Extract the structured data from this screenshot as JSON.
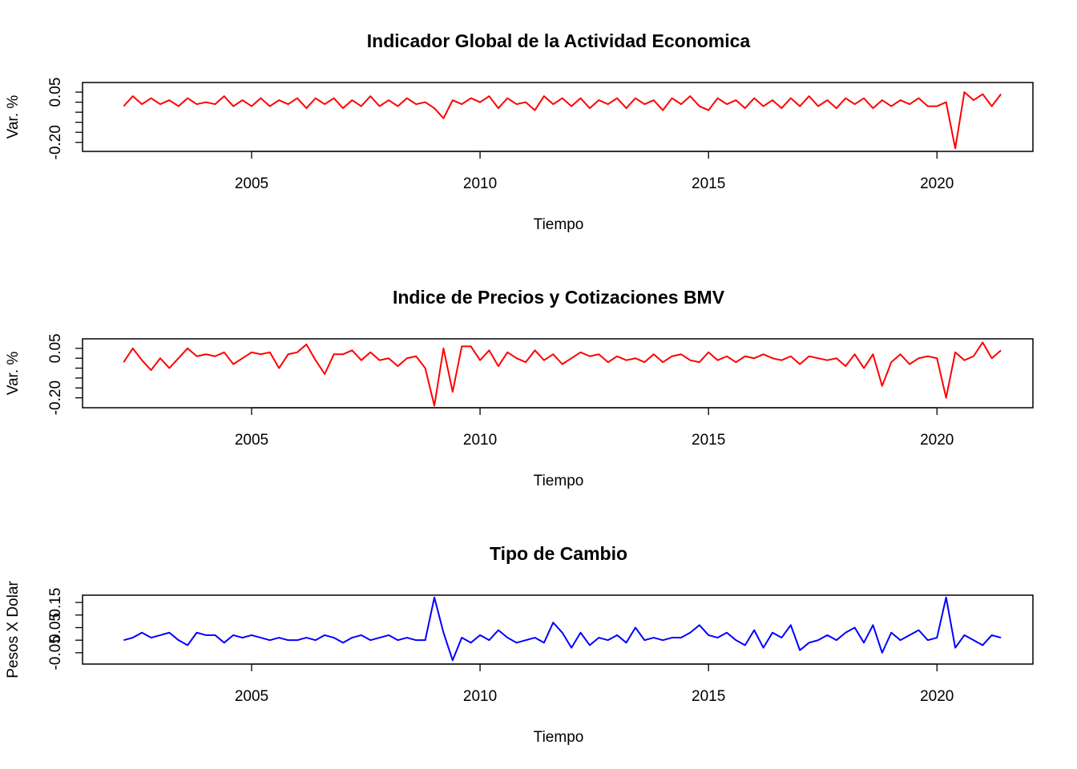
{
  "chart_data": [
    {
      "type": "line",
      "title": "Indicador Global de la Actividad Economica",
      "xlabel": "Tiempo",
      "ylabel": "Var. %",
      "x": [
        2002.2,
        2002.4,
        2002.6,
        2002.8,
        2003,
        2003.2,
        2003.4,
        2003.6,
        2003.8,
        2004,
        2004.2,
        2004.4,
        2004.6,
        2004.8,
        2005,
        2005.2,
        2005.4,
        2005.6,
        2005.8,
        2006,
        2006.2,
        2006.4,
        2006.6,
        2006.8,
        2007,
        2007.2,
        2007.4,
        2007.6,
        2007.8,
        2008,
        2008.2,
        2008.4,
        2008.6,
        2008.8,
        2009,
        2009.2,
        2009.4,
        2009.6,
        2009.8,
        2010,
        2010.2,
        2010.4,
        2010.6,
        2010.8,
        2011,
        2011.2,
        2011.4,
        2011.6,
        2011.8,
        2012,
        2012.2,
        2012.4,
        2012.6,
        2012.8,
        2013,
        2013.2,
        2013.4,
        2013.6,
        2013.8,
        2014,
        2014.2,
        2014.4,
        2014.6,
        2014.8,
        2015,
        2015.2,
        2015.4,
        2015.6,
        2015.8,
        2016,
        2016.2,
        2016.4,
        2016.6,
        2016.8,
        2017,
        2017.2,
        2017.4,
        2017.6,
        2017.8,
        2018,
        2018.2,
        2018.4,
        2018.6,
        2018.8,
        2019,
        2019.2,
        2019.4,
        2019.6,
        2019.8,
        2020,
        2020.2,
        2020.4,
        2020.6,
        2020.8,
        2021,
        2021.2,
        2021.4
      ],
      "series": [
        {
          "color": "#ff0000",
          "values": [
            -0.02,
            0.03,
            -0.01,
            0.02,
            -0.01,
            0.01,
            -0.02,
            0.02,
            -0.01,
            0.0,
            -0.01,
            0.03,
            -0.02,
            0.01,
            -0.02,
            0.02,
            -0.02,
            0.01,
            -0.01,
            0.02,
            -0.03,
            0.02,
            -0.01,
            0.02,
            -0.03,
            0.01,
            -0.02,
            0.03,
            -0.02,
            0.01,
            -0.02,
            0.02,
            -0.01,
            0.0,
            -0.03,
            -0.08,
            0.01,
            -0.01,
            0.02,
            0.0,
            0.03,
            -0.03,
            0.02,
            -0.01,
            0.0,
            -0.04,
            0.03,
            -0.01,
            0.02,
            -0.02,
            0.02,
            -0.03,
            0.01,
            -0.01,
            0.02,
            -0.03,
            0.02,
            -0.01,
            0.01,
            -0.04,
            0.02,
            -0.01,
            0.03,
            -0.02,
            -0.04,
            0.02,
            -0.01,
            0.01,
            -0.03,
            0.02,
            -0.02,
            0.01,
            -0.03,
            0.02,
            -0.02,
            0.03,
            -0.02,
            0.01,
            -0.03,
            0.02,
            -0.01,
            0.02,
            -0.03,
            0.01,
            -0.02,
            0.01,
            -0.01,
            0.02,
            -0.02,
            -0.02,
            0.0,
            -0.23,
            0.05,
            0.01,
            0.04,
            -0.02,
            0.04
          ]
        }
      ],
      "xlim": [
        2001.3,
        2022.1
      ],
      "ylim": [
        -0.245,
        0.098
      ],
      "xticks": [
        2005,
        2010,
        2015,
        2020
      ],
      "yticks": [
        {
          "value": -0.2,
          "label": "-0.20"
        },
        {
          "value": -0.15,
          "label": null
        },
        {
          "value": -0.1,
          "label": null
        },
        {
          "value": -0.05,
          "label": null
        },
        {
          "value": 0,
          "label": null
        },
        {
          "value": 0.05,
          "label": "0.05"
        }
      ]
    },
    {
      "type": "line",
      "title": "Indice de Precios y Cotizaciones BMV",
      "xlabel": "Tiempo",
      "ylabel": "Var. %",
      "x": [
        2002.2,
        2002.4,
        2002.6,
        2002.8,
        2003,
        2003.2,
        2003.4,
        2003.6,
        2003.8,
        2004,
        2004.2,
        2004.4,
        2004.6,
        2004.8,
        2005,
        2005.2,
        2005.4,
        2005.6,
        2005.8,
        2006,
        2006.2,
        2006.4,
        2006.6,
        2006.8,
        2007,
        2007.2,
        2007.4,
        2007.6,
        2007.8,
        2008,
        2008.2,
        2008.4,
        2008.6,
        2008.8,
        2009,
        2009.2,
        2009.4,
        2009.6,
        2009.8,
        2010,
        2010.2,
        2010.4,
        2010.6,
        2010.8,
        2011,
        2011.2,
        2011.4,
        2011.6,
        2011.8,
        2012,
        2012.2,
        2012.4,
        2012.6,
        2012.8,
        2013,
        2013.2,
        2013.4,
        2013.6,
        2013.8,
        2014,
        2014.2,
        2014.4,
        2014.6,
        2014.8,
        2015,
        2015.2,
        2015.4,
        2015.6,
        2015.8,
        2016,
        2016.2,
        2016.4,
        2016.6,
        2016.8,
        2017,
        2017.2,
        2017.4,
        2017.6,
        2017.8,
        2018,
        2018.2,
        2018.4,
        2018.6,
        2018.8,
        2019,
        2019.2,
        2019.4,
        2019.6,
        2019.8,
        2020,
        2020.2,
        2020.4,
        2020.6,
        2020.8,
        2021,
        2021.2,
        2021.4
      ],
      "series": [
        {
          "color": "#ff0000",
          "values": [
            -0.02,
            0.05,
            -0.01,
            -0.06,
            0.0,
            -0.05,
            0.0,
            0.05,
            0.01,
            0.02,
            0.01,
            0.03,
            -0.03,
            0.0,
            0.03,
            0.02,
            0.03,
            -0.05,
            0.02,
            0.03,
            0.07,
            -0.01,
            -0.08,
            0.02,
            0.02,
            0.04,
            -0.01,
            0.03,
            -0.01,
            0.0,
            -0.04,
            0.0,
            0.01,
            -0.05,
            -0.24,
            0.05,
            -0.17,
            0.06,
            0.06,
            -0.01,
            0.04,
            -0.04,
            0.03,
            0.0,
            -0.02,
            0.04,
            -0.01,
            0.02,
            -0.03,
            0.0,
            0.03,
            0.01,
            0.02,
            -0.02,
            0.01,
            -0.01,
            0.0,
            -0.02,
            0.02,
            -0.02,
            0.01,
            0.02,
            -0.01,
            -0.02,
            0.03,
            -0.01,
            0.01,
            -0.02,
            0.01,
            0.0,
            0.02,
            0.0,
            -0.01,
            0.01,
            -0.03,
            0.01,
            0.0,
            -0.01,
            0.0,
            -0.04,
            0.02,
            -0.05,
            0.02,
            -0.14,
            -0.02,
            0.02,
            -0.03,
            0.0,
            0.01,
            0.0,
            -0.2,
            0.03,
            -0.01,
            0.01,
            0.08,
            0.0,
            0.04
          ]
        }
      ],
      "xlim": [
        2001.3,
        2022.1
      ],
      "ylim": [
        -0.25,
        0.098
      ],
      "xticks": [
        2005,
        2010,
        2015,
        2020
      ],
      "yticks": [
        {
          "value": -0.2,
          "label": "-0.20"
        },
        {
          "value": -0.15,
          "label": null
        },
        {
          "value": -0.1,
          "label": null
        },
        {
          "value": -0.05,
          "label": null
        },
        {
          "value": 0,
          "label": null
        },
        {
          "value": 0.05,
          "label": "0.05"
        }
      ]
    },
    {
      "type": "line",
      "title": "Tipo de Cambio",
      "xlabel": "Tiempo",
      "ylabel": "Pesos X Dolar",
      "x": [
        2002.2,
        2002.4,
        2002.6,
        2002.8,
        2003,
        2003.2,
        2003.4,
        2003.6,
        2003.8,
        2004,
        2004.2,
        2004.4,
        2004.6,
        2004.8,
        2005,
        2005.2,
        2005.4,
        2005.6,
        2005.8,
        2006,
        2006.2,
        2006.4,
        2006.6,
        2006.8,
        2007,
        2007.2,
        2007.4,
        2007.6,
        2007.8,
        2008,
        2008.2,
        2008.4,
        2008.6,
        2008.8,
        2009,
        2009.2,
        2009.4,
        2009.6,
        2009.8,
        2010,
        2010.2,
        2010.4,
        2010.6,
        2010.8,
        2011,
        2011.2,
        2011.4,
        2011.6,
        2011.8,
        2012,
        2012.2,
        2012.4,
        2012.6,
        2012.8,
        2013,
        2013.2,
        2013.4,
        2013.6,
        2013.8,
        2014,
        2014.2,
        2014.4,
        2014.6,
        2014.8,
        2015,
        2015.2,
        2015.4,
        2015.6,
        2015.8,
        2016,
        2016.2,
        2016.4,
        2016.6,
        2016.8,
        2017,
        2017.2,
        2017.4,
        2017.6,
        2017.8,
        2018,
        2018.2,
        2018.4,
        2018.6,
        2018.8,
        2019,
        2019.2,
        2019.4,
        2019.6,
        2019.8,
        2020,
        2020.2,
        2020.4,
        2020.6,
        2020.8,
        2021,
        2021.2,
        2021.4
      ],
      "series": [
        {
          "color": "#0000ff",
          "values": [
            0.0,
            0.01,
            0.03,
            0.01,
            0.02,
            0.03,
            0.0,
            -0.02,
            0.03,
            0.02,
            0.02,
            -0.01,
            0.02,
            0.01,
            0.02,
            0.01,
            0.0,
            0.01,
            0.0,
            0.0,
            0.01,
            0.0,
            0.02,
            0.01,
            -0.01,
            0.01,
            0.02,
            0.0,
            0.01,
            0.02,
            0.0,
            0.01,
            0.0,
            0.0,
            0.17,
            0.03,
            -0.08,
            0.01,
            -0.01,
            0.02,
            0.0,
            0.04,
            0.01,
            -0.01,
            0.0,
            0.01,
            -0.01,
            0.07,
            0.03,
            -0.03,
            0.03,
            -0.02,
            0.01,
            0.0,
            0.02,
            -0.01,
            0.05,
            0.0,
            0.01,
            0.0,
            0.01,
            0.01,
            0.03,
            0.06,
            0.02,
            0.01,
            0.03,
            0.0,
            -0.02,
            0.04,
            -0.03,
            0.03,
            0.01,
            0.06,
            -0.04,
            -0.01,
            0.0,
            0.02,
            0.0,
            0.03,
            0.05,
            -0.01,
            0.06,
            -0.05,
            0.03,
            0.0,
            0.02,
            0.04,
            0.0,
            0.01,
            0.17,
            -0.03,
            0.02,
            0.0,
            -0.02,
            0.02,
            0.01
          ]
        }
      ],
      "xlim": [
        2001.3,
        2022.1
      ],
      "ylim": [
        -0.095,
        0.179
      ],
      "xticks": [
        2005,
        2010,
        2015,
        2020
      ],
      "yticks": [
        {
          "value": -0.05,
          "label": "-0.05"
        },
        {
          "value": 0,
          "label": null
        },
        {
          "value": 0.05,
          "label": "0.05"
        },
        {
          "value": 0.1,
          "label": null
        },
        {
          "value": 0.15,
          "label": "0.15"
        }
      ]
    }
  ]
}
